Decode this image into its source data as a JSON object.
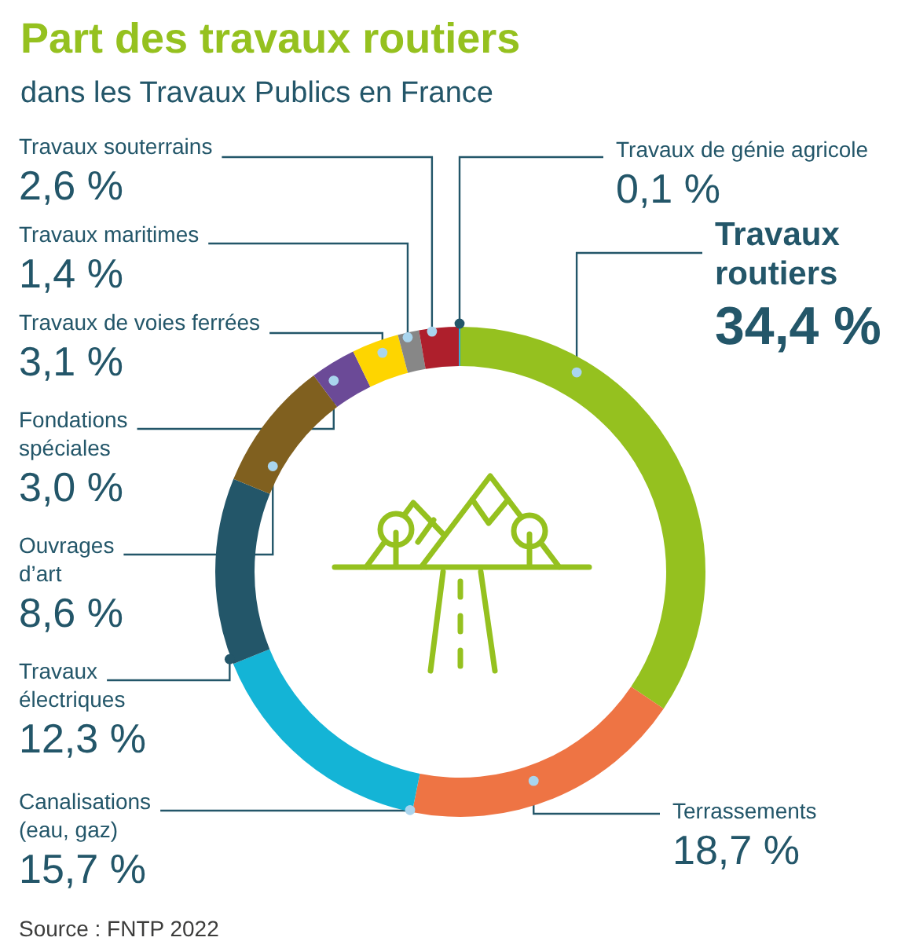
{
  "chart_data": {
    "type": "donut",
    "title": "Part des travaux routiers",
    "subtitle": "dans les Travaux Publics en France",
    "categories": [
      "Travaux routiers",
      "Terrassements",
      "Canalisations (eau, gaz)",
      "Travaux électriques",
      "Ouvrages d’art",
      "Fondations spéciales",
      "Travaux de voies ferrées",
      "Travaux maritimes",
      "Travaux souterrains",
      "Travaux de génie agricole"
    ],
    "values": [
      34.4,
      18.7,
      15.7,
      12.3,
      8.6,
      3.0,
      3.1,
      1.4,
      2.6,
      0.1
    ],
    "colors": [
      "#95c11f",
      "#ee7444",
      "#14b4d6",
      "#235669",
      "#80601f",
      "#6b4a97",
      "#fed500",
      "#878787",
      "#ae1f2c",
      "#1fa8d9"
    ],
    "value_labels": [
      "34,4 %",
      "18,7 %",
      "15,7 %",
      "12,3 %",
      "8,6 %",
      "3,0 %",
      "3,1 %",
      "1,4 %",
      "2,6 %",
      "0,1 %"
    ],
    "annotations": [
      "Source : FNTP 2022"
    ]
  }
}
